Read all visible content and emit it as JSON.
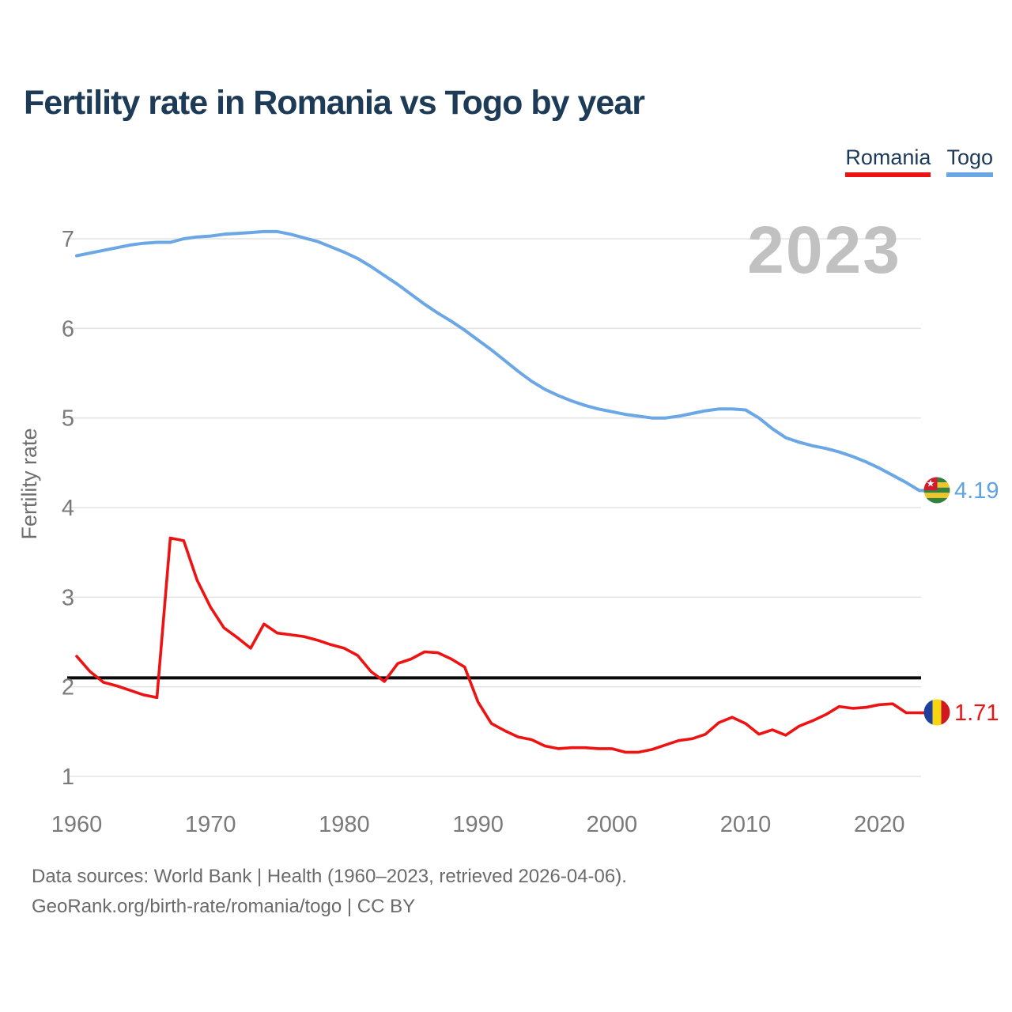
{
  "title": "Fertility rate in Romania vs Togo by year",
  "legend": {
    "items": [
      {
        "label": "Romania",
        "color": "#ee1313"
      },
      {
        "label": "Togo",
        "color": "#6aa7e4"
      }
    ]
  },
  "watermark": "2023",
  "y_axis": {
    "label": "Fertility rate",
    "ticks": [
      7,
      6,
      5,
      4,
      3,
      2,
      1
    ]
  },
  "x_axis": {
    "ticks": [
      1960,
      1970,
      1980,
      1990,
      2000,
      2010,
      2020
    ]
  },
  "end_labels": {
    "togo": {
      "value": "4.19",
      "color": "#5ea2e2",
      "flag": "togo-flag"
    },
    "romania": {
      "value": "1.71",
      "color": "#ee1313",
      "flag": "romania-flag"
    }
  },
  "footer": {
    "line1": "Data sources: World Bank | Health (1960–2023, retrieved 2026-04-06).",
    "line2": "GeoRank.org/birth-rate/romania/togo | CC BY"
  },
  "chart_data": {
    "type": "line",
    "title": "Fertility rate in Romania vs Togo by year",
    "xlabel": "",
    "ylabel": "Fertility rate",
    "x_start": 1960,
    "x_end": 2023,
    "ylim": [
      1,
      7
    ],
    "grid": "horizontal",
    "legend_position": "top-right",
    "reference_line": {
      "value": 2.1,
      "color": "#0a0a0a"
    },
    "series": [
      {
        "name": "Togo",
        "color": "#6aa7e4",
        "end_value": 4.19,
        "values": [
          6.81,
          6.84,
          6.87,
          6.9,
          6.93,
          6.95,
          6.96,
          6.96,
          7.0,
          7.02,
          7.03,
          7.05,
          7.06,
          7.07,
          7.08,
          7.08,
          7.05,
          7.01,
          6.97,
          6.91,
          6.85,
          6.78,
          6.69,
          6.59,
          6.49,
          6.38,
          6.27,
          6.17,
          6.08,
          5.98,
          5.87,
          5.76,
          5.64,
          5.52,
          5.41,
          5.32,
          5.25,
          5.19,
          5.14,
          5.1,
          5.07,
          5.04,
          5.02,
          5.0,
          5.0,
          5.02,
          5.05,
          5.08,
          5.1,
          5.1,
          5.09,
          5.0,
          4.88,
          4.78,
          4.73,
          4.69,
          4.66,
          4.62,
          4.57,
          4.51,
          4.44,
          4.36,
          4.28,
          4.19
        ]
      },
      {
        "name": "Romania",
        "color": "#ee1313",
        "end_value": 1.71,
        "values": [
          2.34,
          2.17,
          2.05,
          2.01,
          1.96,
          1.91,
          1.88,
          3.66,
          3.63,
          3.19,
          2.89,
          2.66,
          2.55,
          2.43,
          2.7,
          2.6,
          2.58,
          2.56,
          2.52,
          2.47,
          2.43,
          2.35,
          2.17,
          2.06,
          2.26,
          2.31,
          2.39,
          2.38,
          2.31,
          2.22,
          1.83,
          1.59,
          1.51,
          1.44,
          1.41,
          1.34,
          1.31,
          1.32,
          1.32,
          1.31,
          1.31,
          1.27,
          1.27,
          1.3,
          1.35,
          1.4,
          1.42,
          1.47,
          1.6,
          1.66,
          1.59,
          1.47,
          1.52,
          1.46,
          1.56,
          1.62,
          1.69,
          1.78,
          1.76,
          1.77,
          1.8,
          1.81,
          1.71,
          1.71
        ]
      }
    ]
  }
}
